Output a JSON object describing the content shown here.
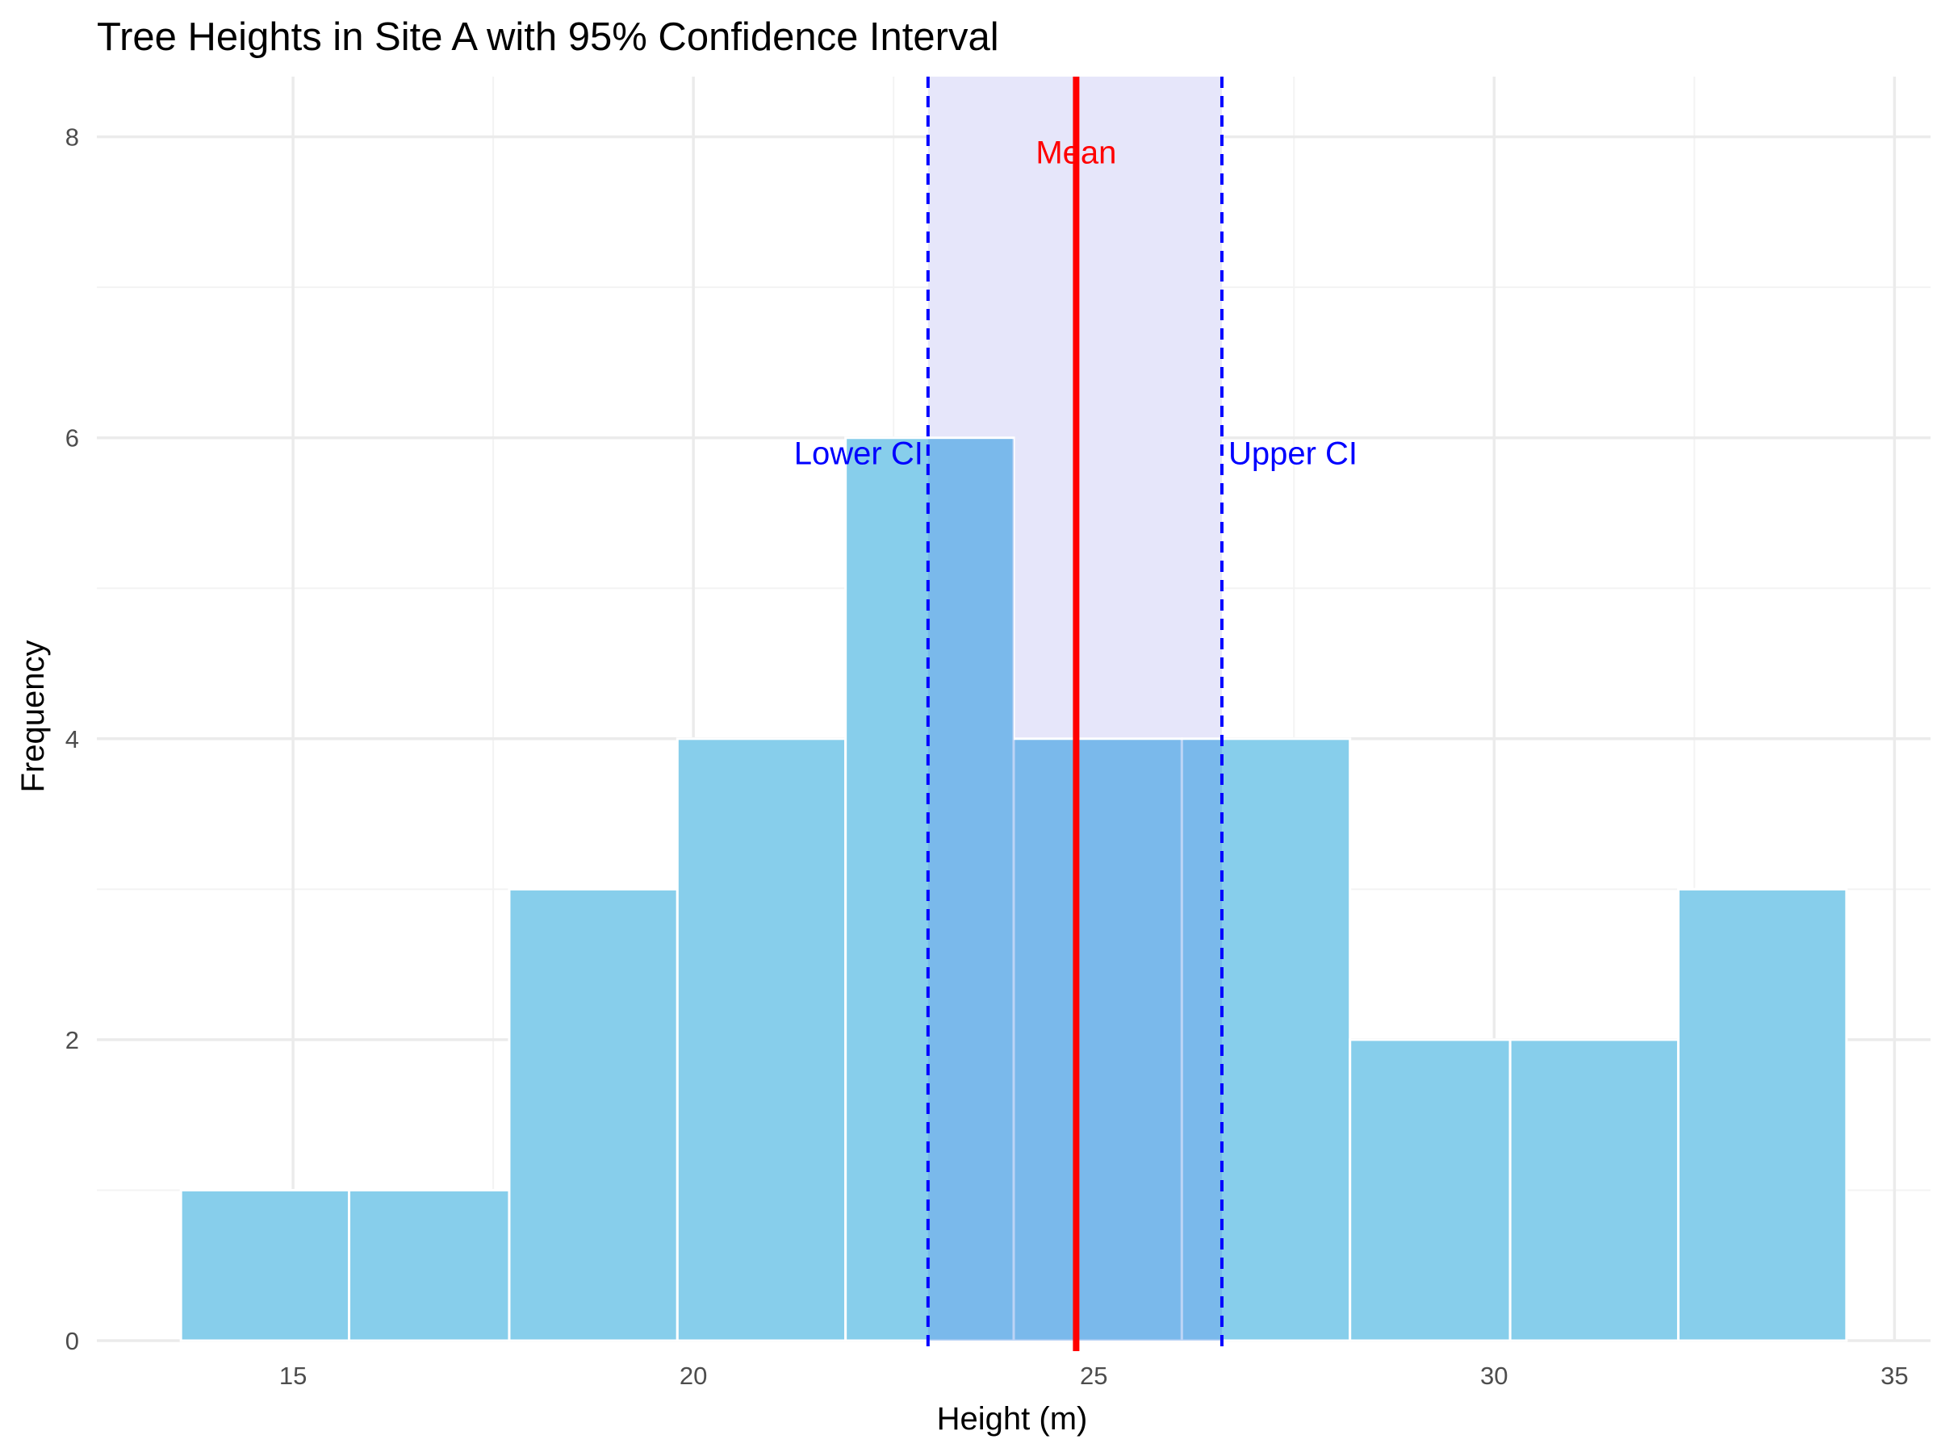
{
  "chart_data": {
    "type": "bar",
    "title": "Tree Heights in Site A with 95% Confidence Interval",
    "xlabel": "Height (m)",
    "ylabel": "Frequency",
    "xlim": [
      12.55,
      35.45
    ],
    "ylim": [
      0,
      8.4
    ],
    "x_ticks": [
      15,
      20,
      25,
      30,
      35
    ],
    "y_ticks": [
      0,
      2,
      4,
      6,
      8
    ],
    "x_tick_labels": [
      "15",
      "20",
      "25",
      "30",
      "35"
    ],
    "y_tick_labels": [
      "0",
      "2",
      "4",
      "6",
      "8"
    ],
    "bins": [
      {
        "x0": 13.6,
        "x1": 15.7,
        "count": 1
      },
      {
        "x0": 15.7,
        "x1": 17.7,
        "count": 1
      },
      {
        "x0": 17.7,
        "x1": 19.8,
        "count": 3
      },
      {
        "x0": 19.8,
        "x1": 21.9,
        "count": 4
      },
      {
        "x0": 21.9,
        "x1": 24.0,
        "count": 6
      },
      {
        "x0": 24.0,
        "x1": 26.1,
        "count": 4
      },
      {
        "x0": 26.1,
        "x1": 28.2,
        "count": 4
      },
      {
        "x0": 28.2,
        "x1": 30.2,
        "count": 2
      },
      {
        "x0": 30.2,
        "x1": 32.3,
        "count": 2
      },
      {
        "x0": 32.3,
        "x1": 34.4,
        "count": 3
      }
    ],
    "mean": 24.78,
    "ci_lower": 22.93,
    "ci_upper": 26.6,
    "annotations": {
      "mean": {
        "text": "Mean",
        "y": 7.9
      },
      "lower": {
        "text": "Lower CI",
        "y": 5.9
      },
      "upper": {
        "text": "Upper CI",
        "y": 5.9
      }
    },
    "grid": true,
    "legend": "none"
  },
  "colors": {
    "bar_fill": "#87CEEB",
    "bar_stroke": "#ffffff",
    "ci_band": "#E6E6FA",
    "ci_line": "#0000FF",
    "mean_line": "#FF0000",
    "grid_major": "#EBEBEB",
    "grid_minor": "#F3F3F3"
  }
}
